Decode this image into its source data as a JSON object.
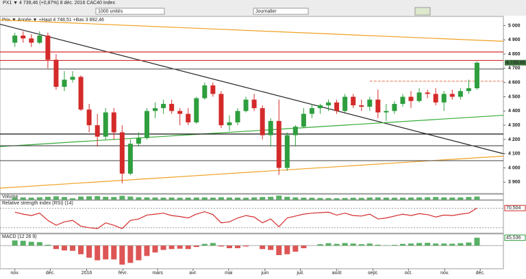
{
  "toolbar": {
    "symbol": "PX1 ▼ 4 739,46 (+0,87%) 8 déc. 2016 CAC40 Index",
    "units": "1000 unités",
    "period": "Journalier"
  },
  "chart_data": [
    {
      "type": "candlestick",
      "subtitle": "Prix ▼ Année ▼ +Haut 4 748,51 +Bas 3 892,46",
      "x": [
        0,
        1,
        2,
        3,
        4,
        5,
        6,
        7,
        8,
        9,
        10,
        11,
        12,
        13,
        14,
        15,
        16,
        17,
        18,
        19,
        20,
        21,
        22,
        23,
        24,
        25,
        26,
        27,
        28,
        29,
        30,
        31,
        32,
        33,
        34,
        35,
        36,
        37,
        38,
        39,
        40,
        41,
        42,
        43,
        44,
        45,
        46,
        47,
        48,
        49,
        50,
        51,
        52,
        53,
        54,
        55,
        56
      ],
      "open": [
        4880,
        4930,
        4910,
        4880,
        4930,
        4760,
        4570,
        4620,
        4640,
        4410,
        4300,
        4220,
        4390,
        4250,
        3960,
        4170,
        4210,
        4400,
        4420,
        4450,
        4400,
        4380,
        4320,
        4490,
        4580,
        4520,
        4300,
        4320,
        4400,
        4480,
        4420,
        4230,
        4330,
        4000,
        4230,
        4290,
        4380,
        4420,
        4440,
        4460,
        4400,
        4500,
        4440,
        4430,
        4480,
        4390,
        4400,
        4450,
        4500,
        4470,
        4530,
        4520,
        4460,
        4520,
        4500,
        4540,
        4560
      ],
      "high": [
        4950,
        4960,
        4940,
        4960,
        4950,
        4800,
        4680,
        4680,
        4650,
        4450,
        4380,
        4420,
        4420,
        4300,
        4200,
        4250,
        4420,
        4460,
        4480,
        4480,
        4420,
        4420,
        4500,
        4600,
        4600,
        4540,
        4370,
        4420,
        4500,
        4520,
        4440,
        4350,
        4480,
        4250,
        4300,
        4420,
        4450,
        4450,
        4480,
        4480,
        4520,
        4520,
        4480,
        4500,
        4550,
        4450,
        4470,
        4520,
        4540,
        4560,
        4550,
        4560,
        4540,
        4550,
        4560,
        4620,
        4748.51
      ],
      "low": [
        4850,
        4880,
        4850,
        4870,
        4700,
        4550,
        4540,
        4600,
        4400,
        4250,
        4150,
        4200,
        4200,
        3892.46,
        3950,
        4150,
        4200,
        4350,
        4380,
        4380,
        4300,
        4300,
        4310,
        4480,
        4500,
        4280,
        4260,
        4300,
        4390,
        4400,
        4200,
        4150,
        3950,
        3980,
        4150,
        4280,
        4350,
        4380,
        4400,
        4380,
        4390,
        4420,
        4400,
        4400,
        4350,
        4330,
        4380,
        4430,
        4420,
        4460,
        4490,
        4440,
        4400,
        4480,
        4480,
        4520,
        4550
      ],
      "close": [
        4930,
        4910,
        4880,
        4930,
        4760,
        4570,
        4620,
        4640,
        4410,
        4300,
        4220,
        4390,
        4250,
        3960,
        4170,
        4210,
        4400,
        4420,
        4450,
        4400,
        4380,
        4320,
        4490,
        4580,
        4520,
        4300,
        4320,
        4400,
        4480,
        4420,
        4230,
        4330,
        4000,
        4230,
        4290,
        4380,
        4420,
        4440,
        4460,
        4400,
        4500,
        4440,
        4430,
        4480,
        4390,
        4400,
        4450,
        4500,
        4470,
        4530,
        4520,
        4460,
        4520,
        4500,
        4540,
        4560,
        4739.46
      ],
      "colors": {
        "up": "#2e9e3e",
        "down": "#d42a2a"
      },
      "xlim": [
        -1.8,
        59.2
      ],
      "xticks": [
        {
          "value": 0,
          "label": "nov."
        },
        {
          "value": 4.3,
          "label": "déc."
        },
        {
          "value": 8.7,
          "label": "2016"
        },
        {
          "value": 13.1,
          "label": "févr."
        },
        {
          "value": 17.3,
          "label": "mars"
        },
        {
          "value": 21.6,
          "label": "avr."
        },
        {
          "value": 25.9,
          "label": "mai"
        },
        {
          "value": 30.3,
          "label": "juin"
        },
        {
          "value": 34.6,
          "label": "juil."
        },
        {
          "value": 39,
          "label": "août"
        },
        {
          "value": 43.4,
          "label": "sept."
        },
        {
          "value": 47.7,
          "label": "oct."
        },
        {
          "value": 52.1,
          "label": "nov."
        },
        {
          "value": 56.4,
          "label": "déc."
        }
      ],
      "ylim": [
        3820,
        5060
      ],
      "yticks": [
        {
          "value": 5000,
          "label": "5 000"
        },
        {
          "value": 4900,
          "label": "4 900"
        },
        {
          "value": 4800,
          "label": "4 800"
        },
        {
          "value": 4700,
          "label": "4 700"
        },
        {
          "value": 4600,
          "label": "4 600"
        },
        {
          "value": 4500,
          "label": "4 500"
        },
        {
          "value": 4400,
          "label": "4 400"
        },
        {
          "value": 4300,
          "label": "4 300"
        },
        {
          "value": 4200,
          "label": "4 200"
        },
        {
          "value": 4100,
          "label": "4 100"
        },
        {
          "value": 4000,
          "label": "4 000"
        },
        {
          "value": 3900,
          "label": "3 900"
        }
      ],
      "last_price": {
        "value": 4739.46,
        "label": "4 739,46"
      },
      "lines": [
        {
          "color": "#222222",
          "x": [
            -1.8,
            59.2
          ],
          "y": [
            5010,
            4100
          ]
        },
        {
          "color": "#f0a020",
          "x": [
            -1.8,
            59.2
          ],
          "y": [
            5040,
            4890
          ]
        },
        {
          "color": "#33aa33",
          "x": [
            -1.8,
            59.2
          ],
          "y": [
            4150,
            4370
          ]
        },
        {
          "color": "#f0a020",
          "x": [
            -1.8,
            59.2
          ],
          "y": [
            3858,
            4083
          ]
        },
        {
          "color": "#d42a2a",
          "x": [
            -1.8,
            59.2
          ],
          "y": [
            4815,
            4815
          ]
        },
        {
          "color": "#d42a2a",
          "x": [
            -1.8,
            59.2
          ],
          "y": [
            4755,
            4755
          ]
        },
        {
          "color": "#555555",
          "x": [
            -1.8,
            59.2
          ],
          "y": [
            4695,
            4695
          ]
        },
        {
          "color": "#111111",
          "x": [
            -1.8,
            59.2
          ],
          "y": [
            4238,
            4238
          ]
        },
        {
          "color": "#555555",
          "x": [
            -1.8,
            59.2
          ],
          "y": [
            4156,
            4156
          ]
        },
        {
          "color": "#555555",
          "x": [
            -1.8,
            59.2
          ],
          "y": [
            4051,
            4051
          ]
        },
        {
          "color": "#e89070",
          "x": [
            43,
            59.2
          ],
          "y": [
            4610,
            4610
          ]
        }
      ]
    },
    {
      "type": "bar",
      "title": "Volume",
      "color": "#2e9e3e",
      "x": [
        0,
        1,
        2,
        3,
        4,
        5,
        6,
        7,
        8,
        9,
        10,
        11,
        12,
        13,
        14,
        15,
        16,
        17,
        18,
        19,
        20,
        21,
        22,
        23,
        24,
        25,
        26,
        27,
        28,
        29,
        30,
        31,
        32,
        33,
        34,
        35,
        36,
        37,
        38,
        39,
        40,
        41,
        42,
        43,
        44,
        45,
        46,
        47,
        48,
        49,
        50,
        51,
        52,
        53,
        54,
        55,
        56
      ],
      "values": [
        90,
        95,
        85,
        100,
        120,
        140,
        110,
        60,
        130,
        140,
        150,
        120,
        110,
        160,
        130,
        100,
        95,
        90,
        85,
        90,
        80,
        85,
        90,
        95,
        85,
        100,
        90,
        85,
        80,
        95,
        110,
        120,
        170,
        120,
        95,
        85,
        80,
        70,
        65,
        60,
        70,
        80,
        75,
        90,
        95,
        85,
        80,
        85,
        90,
        95,
        100,
        110,
        95,
        90,
        95,
        110,
        130
      ],
      "ylim": [
        0,
        200
      ]
    },
    {
      "type": "line",
      "title": "Relative strength index (RSI) (14)",
      "color": "#d42a2a",
      "x": [
        0,
        1,
        2,
        3,
        4,
        5,
        6,
        7,
        8,
        9,
        10,
        11,
        12,
        13,
        14,
        15,
        16,
        17,
        18,
        19,
        20,
        21,
        22,
        23,
        24,
        25,
        26,
        27,
        28,
        29,
        30,
        31,
        32,
        33,
        34,
        35,
        36,
        37,
        38,
        39,
        40,
        41,
        42,
        43,
        44,
        45,
        46,
        47,
        48,
        49,
        50,
        51,
        52,
        53,
        54,
        55,
        56
      ],
      "values": [
        62,
        58,
        55,
        60,
        45,
        35,
        42,
        45,
        33,
        30,
        28,
        40,
        35,
        28,
        45,
        48,
        56,
        58,
        60,
        55,
        53,
        50,
        58,
        63,
        57,
        40,
        42,
        50,
        55,
        52,
        40,
        48,
        32,
        50,
        54,
        58,
        60,
        61,
        62,
        56,
        60,
        55,
        54,
        58,
        48,
        50,
        54,
        58,
        55,
        59,
        57,
        52,
        56,
        55,
        58,
        60,
        70.504
      ],
      "value_labels": [
        null,
        null,
        null,
        null,
        null,
        null,
        null,
        null,
        null,
        null,
        null,
        null,
        null,
        null,
        null,
        null,
        null,
        null,
        null,
        null,
        null,
        null,
        null,
        null,
        null,
        null,
        null,
        null,
        null,
        null,
        null,
        null,
        null,
        null,
        null,
        null,
        null,
        null,
        null,
        null,
        null,
        null,
        null,
        null,
        null,
        null,
        null,
        null,
        null,
        null,
        null,
        null,
        null,
        null,
        null,
        null,
        "70,504"
      ],
      "ylim": [
        20,
        85
      ],
      "ref_lines": [
        70,
        30
      ]
    },
    {
      "type": "bar",
      "title": "MACD (12 26 9)",
      "colors": {
        "up": "#2e9e3e",
        "down": "#d42a2a"
      },
      "x": [
        0,
        1,
        2,
        3,
        4,
        5,
        6,
        7,
        8,
        9,
        10,
        11,
        12,
        13,
        14,
        15,
        16,
        17,
        18,
        19,
        20,
        21,
        22,
        23,
        24,
        25,
        26,
        27,
        28,
        29,
        30,
        31,
        32,
        33,
        34,
        35,
        36,
        37,
        38,
        39,
        40,
        41,
        42,
        43,
        44,
        45,
        46,
        47,
        48,
        49,
        50,
        51,
        52,
        53,
        54,
        55,
        56
      ],
      "values": [
        30,
        28,
        22,
        20,
        5,
        -20,
        -28,
        -30,
        -50,
        -70,
        -85,
        -80,
        -80,
        -110,
        -100,
        -85,
        -60,
        -40,
        -25,
        -20,
        -18,
        -20,
        -8,
        10,
        15,
        -5,
        -15,
        -15,
        -5,
        0,
        -20,
        -25,
        -55,
        -50,
        -35,
        -15,
        0,
        8,
        14,
        10,
        15,
        12,
        8,
        12,
        5,
        2,
        4,
        10,
        12,
        15,
        16,
        12,
        12,
        11,
        14,
        18,
        45.536
      ],
      "value_labels": [
        null,
        null,
        null,
        null,
        null,
        null,
        null,
        null,
        null,
        null,
        null,
        null,
        null,
        null,
        null,
        null,
        null,
        null,
        null,
        null,
        null,
        null,
        null,
        null,
        null,
        null,
        null,
        null,
        null,
        null,
        null,
        null,
        null,
        null,
        null,
        null,
        null,
        null,
        null,
        null,
        null,
        null,
        null,
        null,
        null,
        null,
        null,
        null,
        null,
        null,
        null,
        null,
        null,
        null,
        null,
        null,
        "45,536"
      ],
      "ylim": [
        -130,
        60
      ]
    }
  ]
}
